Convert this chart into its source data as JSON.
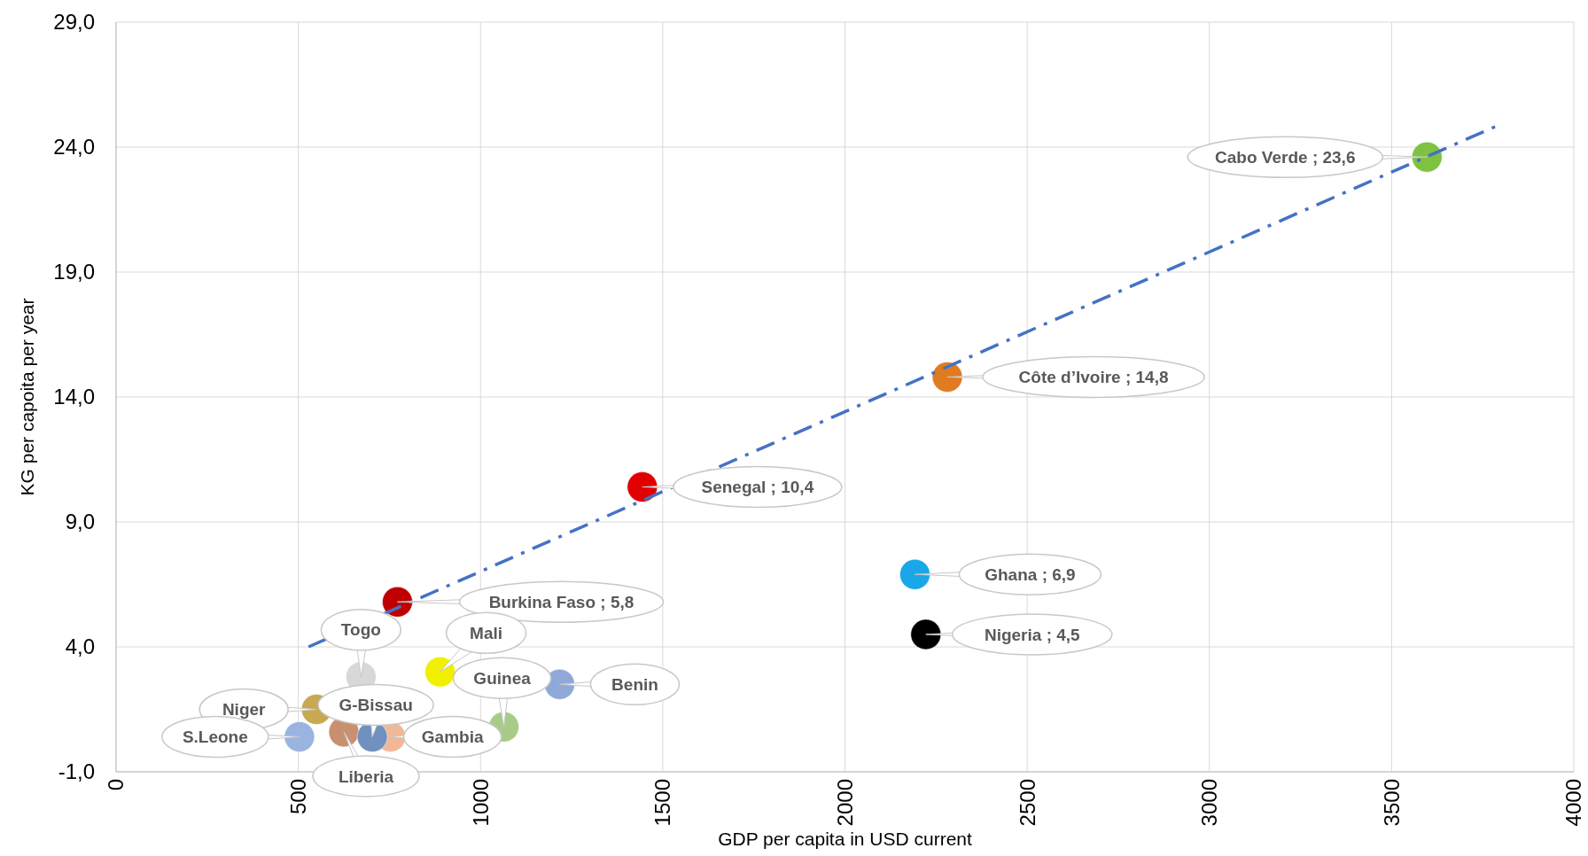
{
  "chart_data": {
    "type": "scatter",
    "xlabel": "GDP per capita in USD current",
    "ylabel": "KG per capoita per year",
    "xlim": [
      0,
      4000
    ],
    "xticks": [
      0,
      500,
      1000,
      1500,
      2000,
      2500,
      3000,
      3500,
      4000
    ],
    "ylim": [
      -1,
      29
    ],
    "yticks": [
      {
        "value": -1,
        "label": "-1,0"
      },
      {
        "value": 4,
        "label": "4,0"
      },
      {
        "value": 9,
        "label": "9,0"
      },
      {
        "value": 14,
        "label": "14,0"
      },
      {
        "value": 19,
        "label": "19,0"
      },
      {
        "value": 24,
        "label": "24,0"
      },
      {
        "value": 29,
        "label": "29,0"
      }
    ],
    "grid": true,
    "series": [
      {
        "marker": "circle",
        "x": [
          3597,
          2281,
          1444,
          2192,
          2222,
          772,
          672,
          889,
          1217,
          1064,
          703,
          550,
          625,
          503,
          753
        ],
        "values": [
          23.6,
          14.8,
          10.4,
          6.9,
          4.5,
          5.8,
          2.8,
          3.0,
          2.5,
          0.8,
          0.4,
          1.5,
          0.6,
          0.4,
          0.4
        ],
        "colors": [
          "#7fc241",
          "#e07b22",
          "#e00000",
          "#1aa7e8",
          "#000000",
          "#c00000",
          "#d8d8d8",
          "#f0f000",
          "#8fa8d8",
          "#a8cc88",
          "#7090c0",
          "#c8a850",
          "#c89070",
          "#9ab4e0",
          "#f0b898"
        ]
      },
      {
        "type": "line",
        "x": [
          528,
          3797
        ],
        "values": [
          4.0,
          24.9
        ],
        "color": "#4472c4",
        "line_style": "dashed"
      }
    ],
    "annotations": [
      {
        "text": "Cabo Verde ; 23,6",
        "x": 3597,
        "y": 23.6
      },
      {
        "text": "Côte d’Ivoire ; 14,8",
        "x": 2281,
        "y": 14.8
      },
      {
        "text": "Senegal ; 10,4",
        "x": 1444,
        "y": 10.4
      },
      {
        "text": "Ghana ; 6,9",
        "x": 2192,
        "y": 6.9
      },
      {
        "text": "Nigeria ; 4,5",
        "x": 2222,
        "y": 4.5
      },
      {
        "text": "Burkina Faso ; 5,8",
        "x": 772,
        "y": 5.8
      },
      {
        "text": "Togo",
        "x": 672,
        "y": 2.8
      },
      {
        "text": "Mali",
        "x": 889,
        "y": 3.0
      },
      {
        "text": "Benin",
        "x": 1217,
        "y": 2.5
      },
      {
        "text": "Guinea",
        "x": 1064,
        "y": 0.8
      },
      {
        "text": "G-Bissau",
        "x": 703,
        "y": 0.4
      },
      {
        "text": "Niger",
        "x": 550,
        "y": 1.5
      },
      {
        "text": "Liberia",
        "x": 625,
        "y": 0.6
      },
      {
        "text": "S.Leone",
        "x": 503,
        "y": 0.4
      },
      {
        "text": "Gambia",
        "x": 753,
        "y": 0.4
      }
    ]
  }
}
